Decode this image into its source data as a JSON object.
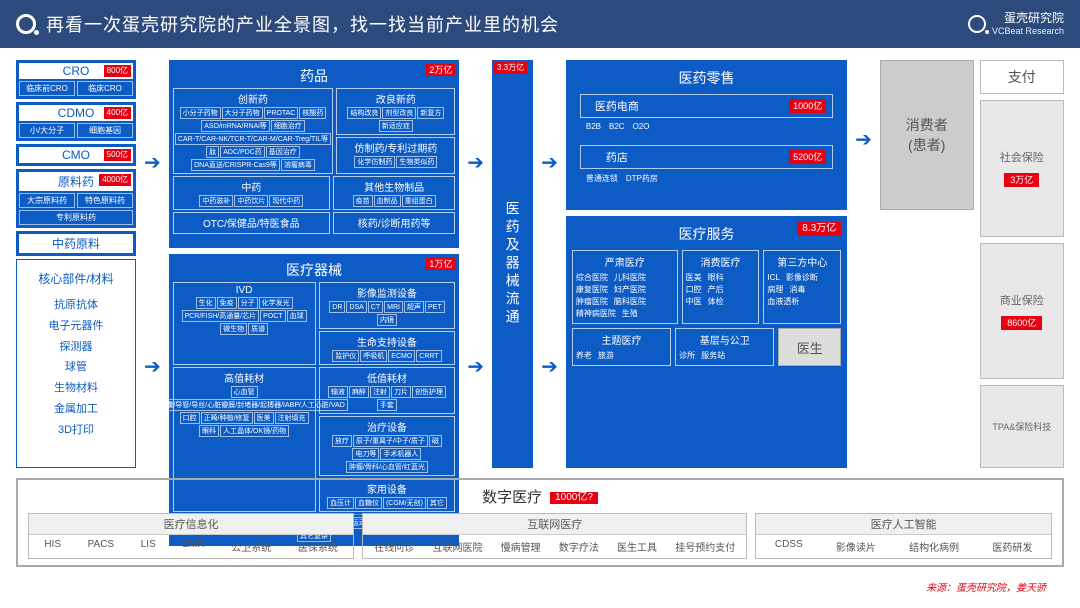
{
  "header": {
    "title": "再看一次蛋壳研究院的产业全景图，找一找当前产业里的机会",
    "brand": "蛋壳研究院",
    "brand_sub": "VCBeat Research"
  },
  "col1": {
    "cro": {
      "title": "CRO",
      "tag": "800亿",
      "items": [
        "临床前CRO",
        "临床CRO"
      ]
    },
    "cdmo": {
      "title": "CDMO",
      "tag": "400亿",
      "items": [
        "小/大分子",
        "细胞基因"
      ]
    },
    "cmo": {
      "title": "CMO",
      "tag": "500亿"
    },
    "api": {
      "title": "原料药",
      "tag": "4000亿",
      "items": [
        "大宗原料药",
        "特色原料药"
      ],
      "item2": "专利原料药"
    },
    "tcm": "中药原料",
    "materials_title": "核心部件/材料",
    "materials": [
      "抗原抗体",
      "电子元器件",
      "探测器",
      "球管",
      "生物材料",
      "金属加工",
      "3D打印"
    ]
  },
  "drugs": {
    "title": "药品",
    "tag": "2万亿",
    "innovative": {
      "title": "创新药",
      "items": [
        "小分子药物",
        "大分子药物",
        "PROTAC",
        "核酸药",
        "ASO/mRNA/RNAi等",
        "细胞治疗",
        "CAR-T/CAR-NK/TCR-T/CAR-M/CAR-Treg/TIL等",
        "肽",
        "ADC/PDC药",
        "基因治疗",
        "DNA直送/CRISPR-Cas9等",
        "溶瘤病毒"
      ]
    },
    "improved": {
      "title": "改良新药",
      "items": [
        "结构改良",
        "剂型改良",
        "新复方",
        "新适应症"
      ]
    },
    "generic": {
      "title": "仿制药/专利过期药",
      "items": [
        "化学仿制药",
        "生物类似药"
      ]
    },
    "tcm": {
      "title": "中药",
      "items": [
        "中药滋补",
        "中药饮片",
        "现代中药"
      ]
    },
    "bio": {
      "title": "其他生物制品",
      "items": [
        "疫苗",
        "血制品",
        "重组蛋白"
      ]
    },
    "otc": {
      "title": "OTC/保健品/特医食品"
    },
    "nuclear": {
      "title": "核药/诊断用药等"
    }
  },
  "devices": {
    "title": "医疗器械",
    "tag": "1万亿",
    "ivd": {
      "title": "IVD",
      "items": [
        "生化",
        "免疫",
        "分子",
        "化学发光",
        "PCR/FISH/高通量/芯片",
        "POCT",
        "血球",
        "微生物",
        "质谱"
      ]
    },
    "imaging": {
      "title": "影像监测设备",
      "items": [
        "DR",
        "DSA",
        "CT",
        "MRI",
        "超声",
        "PET",
        "内镜"
      ]
    },
    "life": {
      "title": "生命支持设备",
      "items": [
        "监护仪",
        "呼吸机",
        "ECMO",
        "CRRT"
      ]
    },
    "consumable": {
      "title": "高值耗材",
      "items": [
        "心血管",
        "支架/球囊/导管/导丝/心脏瓣膜/封堵器/起搏器/IABP/人工心脏/VAD",
        "口腔",
        "正畸/种植/修复",
        "医美",
        "注射填充",
        "眼科",
        "人工晶体/OK镜/药物"
      ]
    },
    "low": {
      "title": "低值耗材",
      "items": [
        "输液",
        "麻醉",
        "注射",
        "刀片",
        "创伤护理",
        "手套"
      ]
    },
    "surgery": {
      "title": "治疗设备",
      "items": [
        "放疗",
        "原子/重离子/中子/质子",
        "磁",
        "电刀等",
        "手术机器人",
        "肿瘤/骨科/心血管/红蓝光"
      ]
    },
    "home": {
      "title": "家用设备",
      "items": [
        "血压计",
        "血糖仪",
        "(CGM/无创)",
        "其它"
      ]
    },
    "other": {
      "items": [
        "骨科",
        "神经/创伤/关节",
        "耳鼻",
        "助听器等",
        "内窥/肠镜等",
        "运动康复等",
        "义齿",
        "人工血管等",
        "其它复杂"
      ]
    }
  },
  "flow": {
    "tag": "3.3万亿",
    "text": "医药及器械流通"
  },
  "retail": {
    "title": "医药零售",
    "online": {
      "label": "医药电商",
      "tag": "1000亿",
      "items": [
        "B2B",
        "B2C",
        "O2O"
      ]
    },
    "store": {
      "label": "药店",
      "tag": "5200亿",
      "items": [
        "普通连锁",
        "DTP药房"
      ]
    }
  },
  "service": {
    "title": "医疗服务",
    "tag": "8.3万亿",
    "serious": {
      "title": "严肃医疗",
      "items": [
        [
          "综合医院",
          "儿科医院"
        ],
        [
          "康复医院",
          "妇产医院"
        ],
        [
          "肿瘤医院",
          "脑科医院"
        ],
        [
          "精神病医院",
          "生殖"
        ]
      ]
    },
    "consumer": {
      "title": "消费医疗",
      "items": [
        [
          "医美",
          "眼科"
        ],
        [
          "口腔",
          "产后"
        ],
        [
          "中医",
          "体检"
        ]
      ]
    },
    "third": {
      "title": "第三方中心",
      "items": [
        [
          "ICL",
          "影像诊断"
        ],
        [
          "病理",
          "消毒"
        ],
        [
          "血液透析",
          ""
        ]
      ]
    },
    "theme": {
      "title": "主题医疗",
      "items": [
        "养老",
        "旅游"
      ]
    },
    "primary": {
      "title": "基层与公卫",
      "items": [
        "诊所",
        "服务站"
      ]
    },
    "doctor": "医生"
  },
  "consumer": {
    "line1": "消费者",
    "line2": "(患者)"
  },
  "pay": {
    "title": "支付",
    "social": {
      "label": "社会保险",
      "tag": "3万亿"
    },
    "commercial": {
      "label": "商业保险",
      "tag": "8600亿"
    },
    "tpa": "TPA&保险科技"
  },
  "digital": {
    "title": "数字医疗",
    "tag": "1000亿?",
    "info": {
      "title": "医疗信息化",
      "items": [
        "HIS",
        "PACS",
        "LIS",
        "EMR",
        "公卫系统",
        "医保系统"
      ]
    },
    "internet": {
      "title": "互联网医疗",
      "items": [
        "在线问诊",
        "互联网医院",
        "慢病管理",
        "数字疗法",
        "医生工具",
        "挂号预约支付"
      ]
    },
    "ai": {
      "title": "医疗人工智能",
      "items": [
        "CDSS",
        "影像读片",
        "结构化病例",
        "医药研发"
      ]
    }
  },
  "credit": "来源：蛋壳研究院，姜天骄"
}
